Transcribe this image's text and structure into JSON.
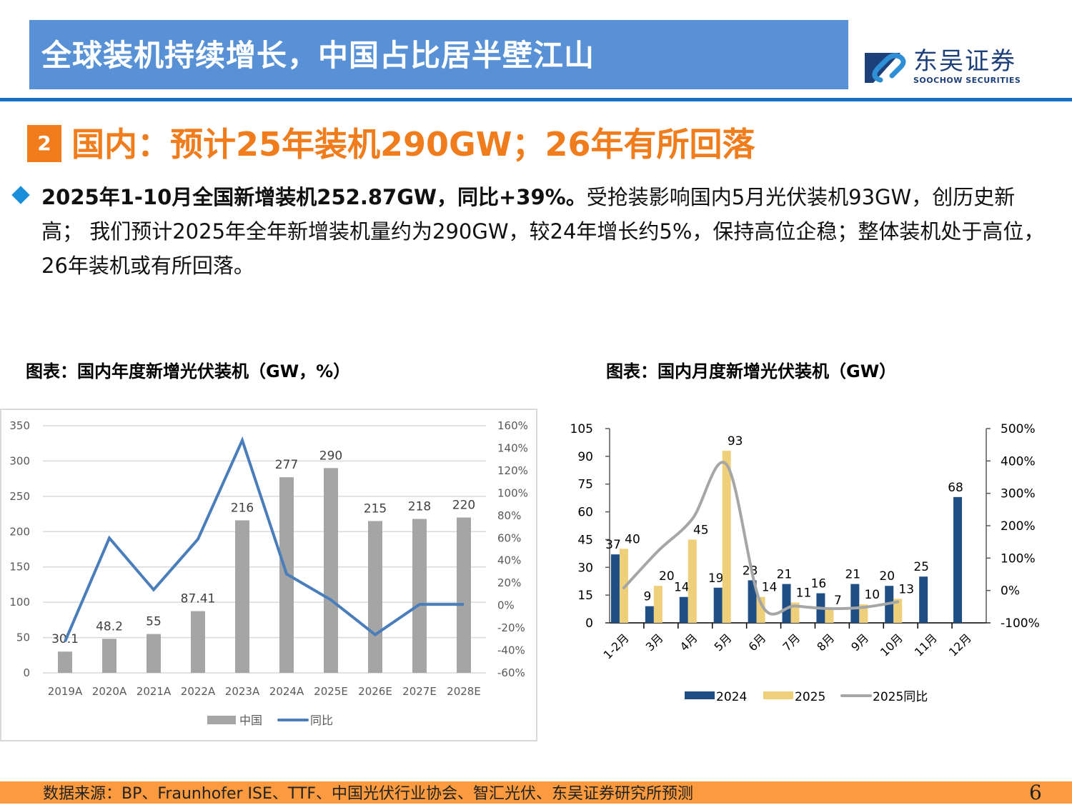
{
  "header": {
    "title": "全球装机持续增长，中国占比居半壁江山",
    "logo_cn": "东吴证券",
    "logo_en": "SOOCHOW SECURITIES",
    "colors": {
      "bar": "#5891d5",
      "rule": "#1a72c2",
      "logo": "#1d3f7a"
    }
  },
  "section": {
    "number": "2",
    "title": "国内：预计25年装机290GW；26年有所回落",
    "color": "#f07c1c"
  },
  "bullet": {
    "bold": "2025年1-10月全国新增装机252.87GW，同比+39%。",
    "rest": "受抢装影响国内5月光伏装机93GW，创历史新高； 我们预计2025年全年新增装机量约为290GW，较24年增长约5%，保持高位企稳；整体装机处于高位，26年装机或有所回落。"
  },
  "figures": {
    "annual_title": "图表：国内年度新增光伏装机（GW，%）",
    "monthly_title": "图表：国内月度新增光伏装机（GW）"
  },
  "footer": {
    "source": "数据来源：BP、Fraunhofer ISE、TTF、中国光伏行业协会、智汇光伏、东吴证券研究所预测",
    "page": "6"
  },
  "chart_data": [
    {
      "type": "bar",
      "title": "国内年度新增光伏装机（GW，%）",
      "categories": [
        "2019A",
        "2020A",
        "2021A",
        "2022A",
        "2023A",
        "2024A",
        "2025E",
        "2026E",
        "2027E",
        "2028E"
      ],
      "series": [
        {
          "name": "中国",
          "type": "bar",
          "axis": "left",
          "color": "#a5a5a5",
          "values": [
            30.1,
            48.2,
            55,
            87.41,
            216,
            277,
            290,
            215,
            218,
            220
          ],
          "labels": [
            "30.1",
            "48.2",
            "55",
            "87.41",
            "216",
            "277",
            "290",
            "215",
            "218",
            "220"
          ]
        },
        {
          "name": "同比",
          "type": "line",
          "axis": "right",
          "color": "#4a7ebb",
          "values": [
            -32,
            60,
            14,
            59,
            147,
            28,
            5,
            -26,
            1,
            1
          ]
        }
      ],
      "left_axis": {
        "min": 0,
        "max": 350,
        "ticks": [
          "0",
          "50",
          "100",
          "150",
          "200",
          "250",
          "300",
          "350"
        ]
      },
      "right_axis": {
        "min": -60,
        "max": 160,
        "ticks": [
          "-60%",
          "-40%",
          "-20%",
          "0%",
          "20%",
          "40%",
          "60%",
          "80%",
          "100%",
          "120%",
          "140%",
          "160%"
        ]
      },
      "grid": true,
      "legend_position": "bottom",
      "legend": [
        "中国",
        "同比"
      ]
    },
    {
      "type": "bar",
      "title": "国内月度新增光伏装机（GW）",
      "categories": [
        "1-2月",
        "3月",
        "4月",
        "5月",
        "6月",
        "7月",
        "8月",
        "9月",
        "10月",
        "11月",
        "12月"
      ],
      "series": [
        {
          "name": "2024",
          "type": "bar",
          "axis": "left",
          "color": "#1f4e84",
          "values": [
            37,
            9,
            14,
            19,
            23,
            21,
            16,
            21,
            20,
            25,
            68
          ]
        },
        {
          "name": "2025",
          "type": "bar",
          "axis": "left",
          "color": "#eecf7a",
          "values": [
            40,
            20,
            45,
            93,
            14,
            11,
            7,
            10,
            13,
            null,
            null
          ]
        },
        {
          "name": "2025同比",
          "type": "line",
          "axis": "right",
          "color": "#a6a6a6",
          "values": [
            8,
            122,
            221,
            389,
            -39,
            -48,
            -56,
            -52,
            -35,
            null,
            null
          ]
        }
      ],
      "left_axis": {
        "min": 0,
        "max": 105,
        "ticks": [
          "0",
          "15",
          "30",
          "45",
          "60",
          "75",
          "90",
          "105"
        ]
      },
      "right_axis": {
        "min": -100,
        "max": 500,
        "ticks": [
          "-100%",
          "0%",
          "100%",
          "200%",
          "300%",
          "400%",
          "500%"
        ]
      },
      "grid": false,
      "legend_position": "bottom",
      "legend": [
        "2024",
        "2025",
        "2025同比"
      ]
    }
  ]
}
